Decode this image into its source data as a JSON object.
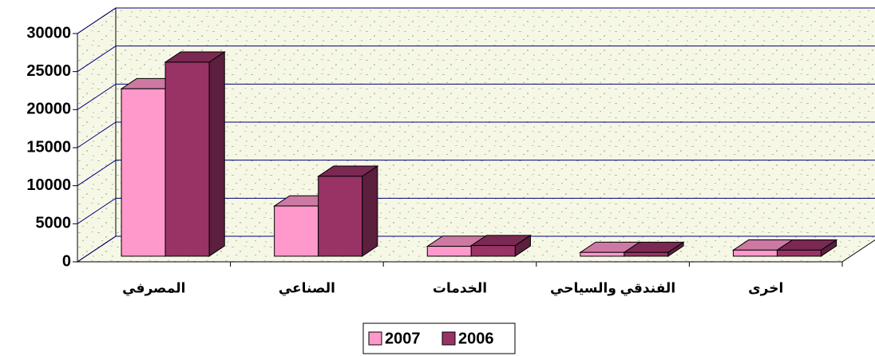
{
  "chart_data": {
    "type": "bar3d",
    "categories": [
      "المصرفي",
      "الصناعي",
      "الخدمات",
      "الفندقي والسياحي",
      "اخرى"
    ],
    "series": [
      {
        "name": "2007",
        "color": "#ff99cc",
        "values": [
          22000,
          6600,
          1300,
          500,
          800
        ]
      },
      {
        "name": "2006",
        "color": "#993366",
        "values": [
          25500,
          10500,
          1400,
          500,
          800
        ]
      }
    ],
    "ylim": [
      0,
      30000
    ],
    "yticks": [
      0,
      5000,
      10000,
      15000,
      20000,
      25000,
      30000
    ],
    "grid": true,
    "legend": "bottom"
  }
}
